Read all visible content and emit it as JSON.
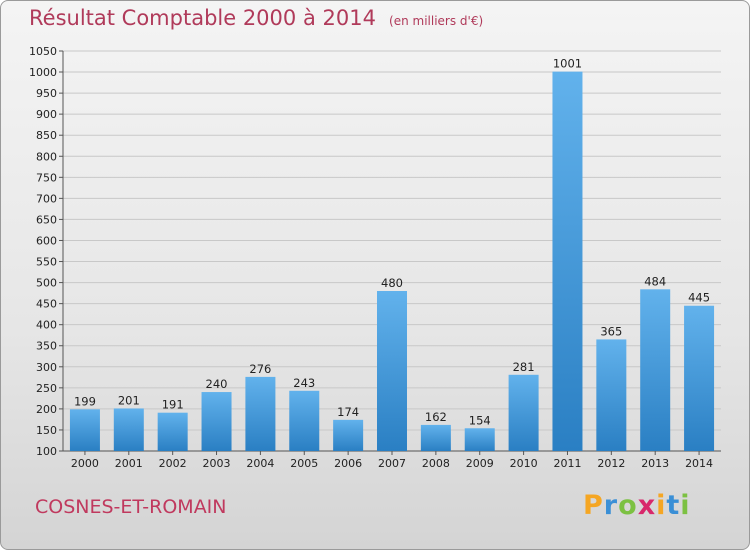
{
  "header": {
    "title": "Résultat Comptable 2000 à 2014",
    "subtitle": "(en milliers d'€)"
  },
  "footer": {
    "commune": "COSNES-ET-ROMAIN",
    "logo": {
      "letters": [
        "P",
        "r",
        "o",
        "x",
        "i",
        "t",
        "i"
      ],
      "colors": [
        "#f5a623",
        "#3a8fd6",
        "#7cc142",
        "#d8286b",
        "#f5a623",
        "#3a8fd6",
        "#7cc142"
      ]
    }
  },
  "colors": {
    "bar_light": "#62b2ec",
    "bar_dark": "#2a7fc3",
    "title": "#b03a5a",
    "grid": "#c8c8c8"
  },
  "chart_data": {
    "type": "bar",
    "title": "Résultat Comptable 2000 à 2014",
    "subtitle": "(en milliers d'€)",
    "categories": [
      "2000",
      "2001",
      "2002",
      "2003",
      "2004",
      "2005",
      "2006",
      "2007",
      "2008",
      "2009",
      "2010",
      "2011",
      "2012",
      "2013",
      "2014"
    ],
    "values": [
      199,
      201,
      191,
      240,
      276,
      243,
      174,
      480,
      162,
      154,
      281,
      1001,
      365,
      484,
      445
    ],
    "ylim": [
      100,
      1050
    ],
    "yticks": [
      100,
      150,
      200,
      250,
      300,
      350,
      400,
      450,
      500,
      550,
      600,
      650,
      700,
      750,
      800,
      850,
      900,
      950,
      1000,
      1050
    ],
    "grid": true,
    "data_labels": true
  }
}
